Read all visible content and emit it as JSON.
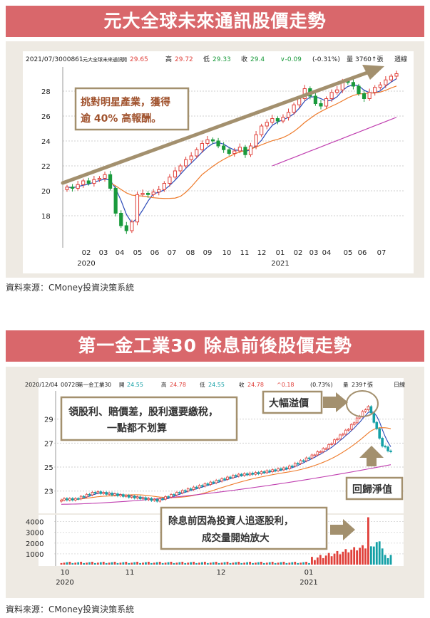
{
  "chart1": {
    "banner": "元大全球未來通訊股價走勢",
    "header": {
      "date": "2021/07/30",
      "code": "00861",
      "name": "元大全球未來通訊",
      "open_label": "開",
      "open": "29.65",
      "high_label": "高",
      "high": "29.72",
      "low_label": "低",
      "low": "29.33",
      "close_label": "收",
      "close": "29.4",
      "change": "∨-0.09",
      "pct": "(-0.31%)",
      "vol_label": "量",
      "vol": "3760↑張",
      "period": "週線"
    },
    "annotation": [
      "挑對明星產業，獲得",
      "逾 40% 高報酬。"
    ],
    "colors": {
      "up": "#e0403a",
      "down": "#1a9a3c",
      "ma_short": "#2a49b8",
      "ma_mid": "#ee7a2a",
      "ma_long": "#c040b0",
      "arrow": "#a3906e"
    }
  },
  "chart2": {
    "banner": "第一金工業30 除息前後股價走勢",
    "header": {
      "date": "2020/12/04",
      "code": "00728",
      "name": "第一金工業30",
      "open_label": "開",
      "open": "24.55",
      "high_label": "高",
      "high": "24.78",
      "low_label": "低",
      "low": "24.55",
      "close_label": "收",
      "close": "24.78",
      "change": "^0.18",
      "pct": "(0.73%)",
      "vol_label": "量",
      "vol": "239↑張",
      "period": "日線"
    },
    "callouts": {
      "dividend": [
        "領股利、賠價差，股利還要繳稅，",
        "一點都不划算"
      ],
      "surge": "大幅溢價",
      "back": "回歸淨值",
      "volume": [
        "除息前因為投資人追逐股利，",
        "成交量開始放大"
      ]
    },
    "colors": {
      "up": "#e0403a",
      "down": "#14a0a6",
      "ma_short": "#2a49b8",
      "ma_mid": "#ee7a2a",
      "ma_long": "#c040b0",
      "arrow": "#a3906e"
    }
  },
  "source": "資料來源：CMoney投資決策系統",
  "chart_data": [
    {
      "type": "candlestick",
      "title": "元大全球未來通訊股價走勢",
      "period": "週線",
      "x_ticks": [
        "02",
        "03",
        "04",
        "05",
        "06",
        "07",
        "08",
        "09",
        "10",
        "11",
        "12",
        "01",
        "02",
        "03",
        "04",
        "05",
        "06",
        "07"
      ],
      "x_years": [
        "2020",
        "2021"
      ],
      "y_ticks": [
        18,
        20,
        22,
        24,
        26,
        28
      ],
      "ylim": [
        16,
        29.6
      ],
      "approx_weekly_close": [
        20.3,
        20.2,
        20.5,
        20.8,
        20.6,
        20.9,
        21.0,
        21.3,
        20.2,
        18.2,
        17.2,
        16.8,
        17.5,
        19.7,
        19.8,
        19.7,
        19.9,
        20.1,
        20.6,
        21.1,
        21.6,
        22.0,
        22.5,
        22.8,
        23.3,
        23.8,
        24.1,
        24.0,
        23.6,
        23.3,
        23.0,
        23.2,
        23.5,
        22.9,
        23.6,
        24.5,
        25.2,
        25.5,
        25.8,
        25.6,
        25.9,
        26.3,
        26.9,
        27.4,
        28.2,
        27.6,
        27.0,
        26.8,
        27.4,
        27.9,
        28.1,
        28.8,
        28.7,
        28.4,
        27.8,
        27.4,
        27.9,
        28.3,
        28.5,
        28.9,
        29.2,
        29.4
      ]
    },
    {
      "type": "candlestick",
      "title": "第一金工業30 除息前後股價走勢",
      "period": "日線",
      "x_ticks": [
        "10",
        "11",
        "12",
        "01"
      ],
      "x_years": [
        "2020",
        "2021"
      ],
      "y_ticks": [
        23,
        25,
        27,
        29
      ],
      "volume_ticks": [
        1000,
        2000,
        3000,
        4000
      ],
      "ylim": [
        21.5,
        31
      ]
    }
  ]
}
